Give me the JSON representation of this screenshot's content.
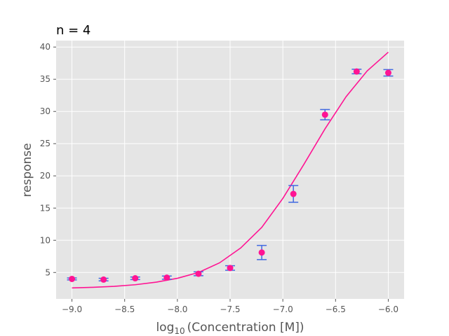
{
  "chart_data": {
    "type": "scatter",
    "title": "n = 4",
    "xlabel_base": "log",
    "xlabel_sub": "10",
    "xlabel_rest": "(Concentration [M])",
    "ylabel": "response",
    "xlim": [
      -9.15,
      -5.85
    ],
    "ylim": [
      0.9,
      41.0
    ],
    "xticks": [
      -9.0,
      -8.5,
      -8.0,
      -7.5,
      -7.0,
      -6.5,
      -6.0
    ],
    "xtick_labels": [
      "−9.0",
      "−8.5",
      "−8.0",
      "−7.5",
      "−7.0",
      "−6.5",
      "−6.0"
    ],
    "yticks": [
      5,
      10,
      15,
      20,
      25,
      30,
      35,
      40
    ],
    "ytick_labels": [
      "5",
      "10",
      "15",
      "20",
      "25",
      "30",
      "35",
      "40"
    ],
    "grid": true,
    "points": {
      "x": [
        -9.0,
        -8.7,
        -8.4,
        -8.1,
        -7.8,
        -7.5,
        -7.2,
        -6.9,
        -6.6,
        -6.3,
        -6.0
      ],
      "y": [
        4.0,
        3.9,
        4.1,
        4.2,
        4.8,
        5.7,
        8.1,
        17.2,
        29.5,
        36.2,
        36.0
      ],
      "yerr": [
        0.15,
        0.2,
        0.2,
        0.25,
        0.3,
        0.35,
        1.1,
        1.3,
        0.8,
        0.35,
        0.5
      ]
    },
    "fit_curve": {
      "x": [
        -9.0,
        -8.8,
        -8.6,
        -8.4,
        -8.2,
        -8.0,
        -7.8,
        -7.6,
        -7.4,
        -7.2,
        -7.0,
        -6.8,
        -6.6,
        -6.4,
        -6.2,
        -6.0
      ],
      "y": [
        2.6,
        2.7,
        2.85,
        3.1,
        3.5,
        4.1,
        5.0,
        6.5,
        8.8,
        12.0,
        16.5,
        21.8,
        27.3,
        32.3,
        36.3,
        39.2
      ]
    },
    "colors": {
      "point": "#ff1493",
      "errorbar": "#4169e1",
      "curve": "#ff1493",
      "plot_bg": "#e5e5e5",
      "grid": "#ffffff"
    }
  }
}
